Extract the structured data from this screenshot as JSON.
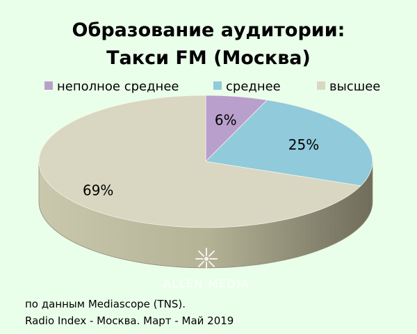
{
  "chart_data": {
    "type": "pie",
    "title": [
      "Образование аудитории:",
      "Такси FM (Москва)"
    ],
    "categories": [
      "неполное среднее",
      "среднее",
      "высшее"
    ],
    "values": [
      6,
      25,
      69
    ],
    "labels": [
      "6%",
      "25%",
      "69%"
    ],
    "colors": [
      "#b9a0cc",
      "#90cadb",
      "#d9d7c1"
    ],
    "legend_position": "top"
  },
  "watermark": {
    "text": "ALLEN MEDIA",
    "icon": "star-burst-icon"
  },
  "source": {
    "line1": "по данным Mediascope (TNS).",
    "line2": "Radio Index - Москва. Март - Май 2019"
  }
}
